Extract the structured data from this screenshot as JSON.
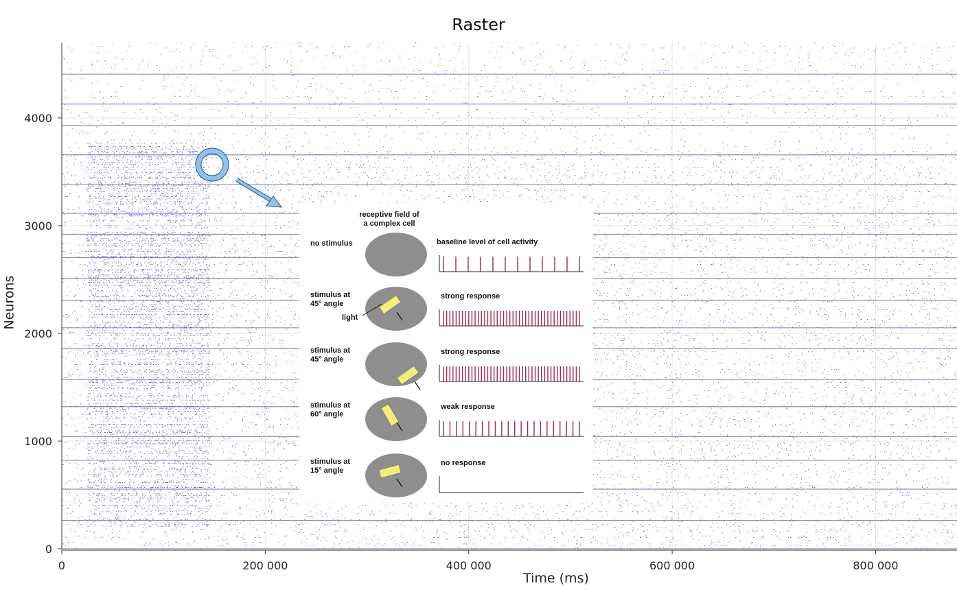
{
  "chart_data": {
    "type": "scatter",
    "title": "Raster",
    "xlabel": "Time (ms)",
    "ylabel": "Neurons",
    "xlim": [
      0,
      880000
    ],
    "ylim": [
      0,
      4700
    ],
    "x_ticks": [
      0,
      200000,
      400000,
      600000,
      800000
    ],
    "x_tick_labels": [
      "0",
      "200 000",
      "400 000",
      "600 000",
      "800 000"
    ],
    "y_ticks": [
      0,
      1000,
      2000,
      3000,
      4000
    ],
    "y_tick_labels": [
      "0",
      "1000",
      "2000",
      "3000",
      "4000"
    ],
    "grid": true,
    "marker_color": "#2b2fa0",
    "dense_window_ms": [
      25000,
      145000
    ]
  },
  "inset": {
    "heading": [
      "receptive field of",
      "a complex cell"
    ],
    "light_label": "light",
    "rows": [
      {
        "stimulus": [
          "no stimulus"
        ],
        "response": "baseline level of cell activity",
        "spikes": 12,
        "bar_angle": null
      },
      {
        "stimulus": [
          "stimulus at",
          "45° angle"
        ],
        "response": "strong response",
        "spikes": 44,
        "bar_angle": -35
      },
      {
        "stimulus": [
          "stimulus at",
          "45° angle"
        ],
        "response": "strong response",
        "spikes": 44,
        "bar_angle": -35
      },
      {
        "stimulus": [
          "stimulus at",
          "60° angle"
        ],
        "response": "weak response",
        "spikes": 22,
        "bar_angle": 60
      },
      {
        "stimulus": [
          "stimulus at",
          "15° angle"
        ],
        "response": "no response",
        "spikes": 0,
        "bar_angle": -15
      }
    ],
    "colors": {
      "disc": "#8e8e8e",
      "bar": "#f3ee7a",
      "spike": "#9c2a4e"
    }
  },
  "annotation": {
    "color": "#8ec2ef"
  }
}
